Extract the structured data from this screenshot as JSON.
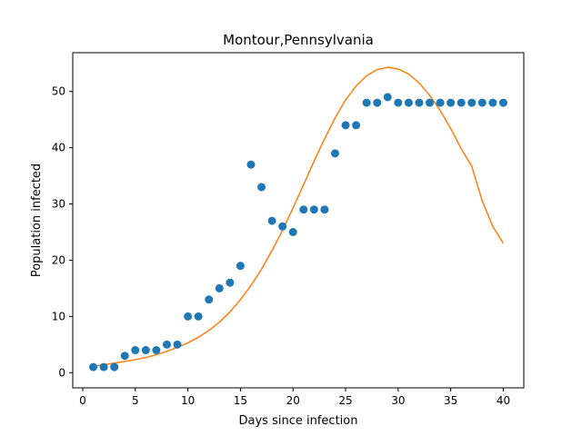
{
  "chart_data": {
    "type": "scatter",
    "title": "Montour,Pennsylvania",
    "xlabel": "Days since infection",
    "ylabel": "Population infected",
    "xlim": [
      -0.95,
      41.95
    ],
    "ylim": [
      -2.7,
      56.9
    ],
    "xticks": [
      0,
      5,
      10,
      15,
      20,
      25,
      30,
      35,
      40
    ],
    "yticks": [
      0,
      10,
      20,
      30,
      40,
      50
    ],
    "grid": false,
    "series": [
      {
        "type": "scatter",
        "color": "#1f77b4",
        "x": [
          1,
          2,
          3,
          4,
          5,
          6,
          7,
          8,
          9,
          10,
          11,
          12,
          13,
          14,
          15,
          16,
          17,
          18,
          19,
          20,
          21,
          22,
          23,
          24,
          25,
          26,
          27,
          28,
          29,
          30,
          31,
          32,
          33,
          34,
          35,
          36,
          37,
          38,
          39,
          40
        ],
        "y": [
          1,
          1,
          1,
          3,
          4,
          4,
          4,
          5,
          5,
          10,
          10,
          13,
          15,
          16,
          19,
          37,
          33,
          27,
          26,
          25,
          29,
          29,
          29,
          39,
          44,
          44,
          48,
          48,
          49,
          48,
          48,
          48,
          48,
          48,
          48,
          48,
          48,
          48,
          48,
          48
        ]
      },
      {
        "type": "line",
        "color": "#ff7f0e",
        "x": [
          1,
          2,
          3,
          4,
          5,
          6,
          7,
          8,
          9,
          10,
          11,
          12,
          13,
          14,
          15,
          16,
          17,
          18,
          19,
          20,
          21,
          22,
          23,
          24,
          25,
          26,
          27,
          28,
          29,
          30,
          31,
          32,
          33,
          34,
          35,
          36,
          37,
          38,
          39,
          40
        ],
        "y": [
          1.2,
          1.4,
          1.7,
          2.0,
          2.3,
          2.7,
          3.2,
          3.8,
          4.5,
          5.3,
          6.3,
          7.5,
          9.0,
          10.8,
          13.0,
          15.5,
          18.4,
          21.7,
          25.3,
          29.3,
          33.4,
          37.6,
          41.6,
          45.3,
          48.5,
          51.0,
          52.8,
          53.9,
          54.3,
          54.0,
          53.1,
          51.5,
          49.3,
          46.6,
          43.4,
          39.8,
          36.7,
          30.5,
          26.0,
          23.0
        ]
      }
    ]
  }
}
